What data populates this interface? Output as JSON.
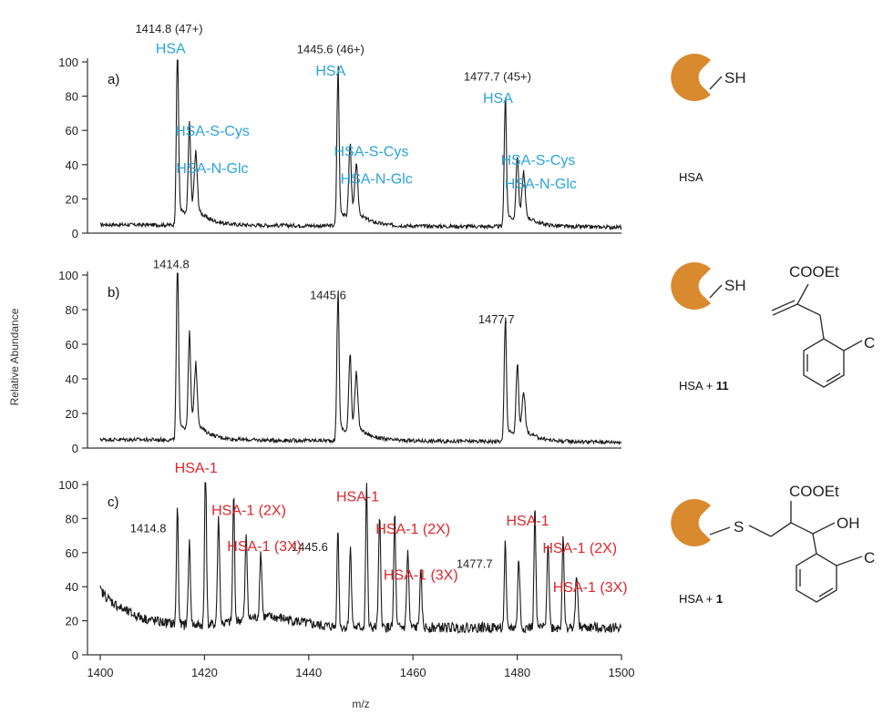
{
  "chart_data": [
    {
      "type": "line",
      "panel_label": "a)",
      "xlabel": "",
      "ylabel": "",
      "xlim": [
        1400,
        1500
      ],
      "ylim": [
        0,
        100
      ],
      "yticks": [
        "0",
        "20",
        "40",
        "60",
        "80",
        "100"
      ],
      "side_label": "HSA",
      "side_label_bold": "",
      "peaks": [
        {
          "x": 1414.8,
          "y": 100,
          "width": 0.35
        },
        {
          "x": 1417.1,
          "y": 50,
          "width": 0.4
        },
        {
          "x": 1418.3,
          "y": 33,
          "width": 0.5
        },
        {
          "x": 1445.6,
          "y": 87,
          "width": 0.35
        },
        {
          "x": 1447.9,
          "y": 42,
          "width": 0.4
        },
        {
          "x": 1449.1,
          "y": 28,
          "width": 0.5
        },
        {
          "x": 1477.7,
          "y": 72,
          "width": 0.35
        },
        {
          "x": 1480.0,
          "y": 37,
          "width": 0.4
        },
        {
          "x": 1481.2,
          "y": 25,
          "width": 0.5
        }
      ],
      "peak_labels": [
        {
          "text": "1414.8 (47+)",
          "x": 1413.2,
          "y": 117
        },
        {
          "text": "1445.6 (46+)",
          "x": 1444.2,
          "y": 105
        },
        {
          "text": "1477.7 (45+)",
          "x": 1476.2,
          "y": 89
        }
      ],
      "annotations": [
        {
          "text": "HSA",
          "x": 1413.5,
          "y": 105
        },
        {
          "text": "HSA-S-Cys",
          "x": 1421.5,
          "y": 57
        },
        {
          "text": "HSA-N-Glc",
          "x": 1421.5,
          "y": 35
        },
        {
          "text": "HSA",
          "x": 1444.2,
          "y": 92
        },
        {
          "text": "HSA-S-Cys",
          "x": 1452.0,
          "y": 45
        },
        {
          "text": "HSA-N-Glc",
          "x": 1453.0,
          "y": 29
        },
        {
          "text": "HSA",
          "x": 1476.3,
          "y": 76
        },
        {
          "text": "HSA-S-Cys",
          "x": 1484.0,
          "y": 40
        },
        {
          "text": "HSA-N-Glc",
          "x": 1484.5,
          "y": 26
        }
      ]
    },
    {
      "type": "line",
      "panel_label": "b)",
      "xlabel": "",
      "ylabel": "Relative Abundance",
      "xlim": [
        1400,
        1500
      ],
      "ylim": [
        0,
        100
      ],
      "yticks": [
        "0",
        "20",
        "40",
        "60",
        "80",
        "100"
      ],
      "side_label": "HSA + ",
      "side_label_bold": "11",
      "peaks": [
        {
          "x": 1414.8,
          "y": 100,
          "width": 0.35
        },
        {
          "x": 1417.1,
          "y": 52,
          "width": 0.4
        },
        {
          "x": 1418.3,
          "y": 34,
          "width": 0.5
        },
        {
          "x": 1445.6,
          "y": 82,
          "width": 0.35
        },
        {
          "x": 1447.9,
          "y": 45,
          "width": 0.4
        },
        {
          "x": 1449.1,
          "y": 30,
          "width": 0.5
        },
        {
          "x": 1477.7,
          "y": 68,
          "width": 0.35
        },
        {
          "x": 1480.0,
          "y": 40,
          "width": 0.4
        },
        {
          "x": 1481.2,
          "y": 22,
          "width": 0.5
        }
      ],
      "peak_labels": [
        {
          "text": "1414.8",
          "x": 1413.6,
          "y": 104
        },
        {
          "text": "1445.6",
          "x": 1443.7,
          "y": 86
        },
        {
          "text": "1477.7",
          "x": 1476.0,
          "y": 72
        }
      ],
      "annotations": []
    },
    {
      "type": "line",
      "panel_label": "c)",
      "xlabel": "m/z",
      "ylabel": "",
      "xlim": [
        1400,
        1500
      ],
      "ylim": [
        0,
        100
      ],
      "yticks": [
        "0",
        "20",
        "40",
        "60",
        "80",
        "100"
      ],
      "xticks": [
        "1400",
        "1420",
        "1440",
        "1460",
        "1480",
        "1500"
      ],
      "side_label": "HSA + ",
      "side_label_bold": "1",
      "peaks": [
        {
          "x": 1414.8,
          "y": 70,
          "width": 0.3
        },
        {
          "x": 1417.1,
          "y": 48,
          "width": 0.35
        },
        {
          "x": 1420.2,
          "y": 100,
          "width": 0.3
        },
        {
          "x": 1422.7,
          "y": 62,
          "width": 0.35
        },
        {
          "x": 1425.6,
          "y": 75,
          "width": 0.3
        },
        {
          "x": 1428.0,
          "y": 48,
          "width": 0.35
        },
        {
          "x": 1430.8,
          "y": 38,
          "width": 0.35
        },
        {
          "x": 1445.6,
          "y": 58,
          "width": 0.3
        },
        {
          "x": 1448.0,
          "y": 46,
          "width": 0.35
        },
        {
          "x": 1451.1,
          "y": 84,
          "width": 0.3
        },
        {
          "x": 1453.6,
          "y": 63,
          "width": 0.35
        },
        {
          "x": 1456.5,
          "y": 67,
          "width": 0.3
        },
        {
          "x": 1459.0,
          "y": 44,
          "width": 0.35
        },
        {
          "x": 1461.5,
          "y": 32,
          "width": 0.35
        },
        {
          "x": 1477.7,
          "y": 49,
          "width": 0.3
        },
        {
          "x": 1480.3,
          "y": 40,
          "width": 0.35
        },
        {
          "x": 1483.4,
          "y": 70,
          "width": 0.3
        },
        {
          "x": 1485.9,
          "y": 50,
          "width": 0.35
        },
        {
          "x": 1488.8,
          "y": 56,
          "width": 0.3
        },
        {
          "x": 1491.4,
          "y": 32,
          "width": 0.35
        }
      ],
      "peak_labels": [
        {
          "text": "1414.8",
          "x": 1409.2,
          "y": 72
        },
        {
          "text": "1445.6",
          "x": 1440.2,
          "y": 61
        },
        {
          "text": "1477.7",
          "x": 1471.8,
          "y": 51
        }
      ],
      "annotations": [
        {
          "text": "HSA-1",
          "x": 1418.4,
          "y": 107
        },
        {
          "text": "HSA-1 (2X)",
          "x": 1428.5,
          "y": 82
        },
        {
          "text": "HSA-1 (3X)",
          "x": 1431.5,
          "y": 61
        },
        {
          "text": "HSA-1",
          "x": 1449.4,
          "y": 90
        },
        {
          "text": "HSA-1 (2X)",
          "x": 1460.0,
          "y": 71
        },
        {
          "text": "HSA-1 (3X)",
          "x": 1461.5,
          "y": 44
        },
        {
          "text": "HSA-1",
          "x": 1482.0,
          "y": 76
        },
        {
          "text": "HSA-1 (2X)",
          "x": 1492.0,
          "y": 60
        },
        {
          "text": "HSA-1 (3X)",
          "x": 1494.0,
          "y": 37
        }
      ]
    }
  ],
  "structures": {
    "a": {
      "text": "SH"
    },
    "b": {
      "text": "SH",
      "ester": "COOEt",
      "subst": "C"
    },
    "c": {
      "text": "S",
      "ester": "COOEt",
      "hydroxyl": "OH",
      "subst": "C"
    }
  },
  "colors": {
    "protein": "#d98a2f",
    "blue_label": "#2aa4d8",
    "red_label": "#e0252b",
    "trace": "#1a1a1a"
  }
}
